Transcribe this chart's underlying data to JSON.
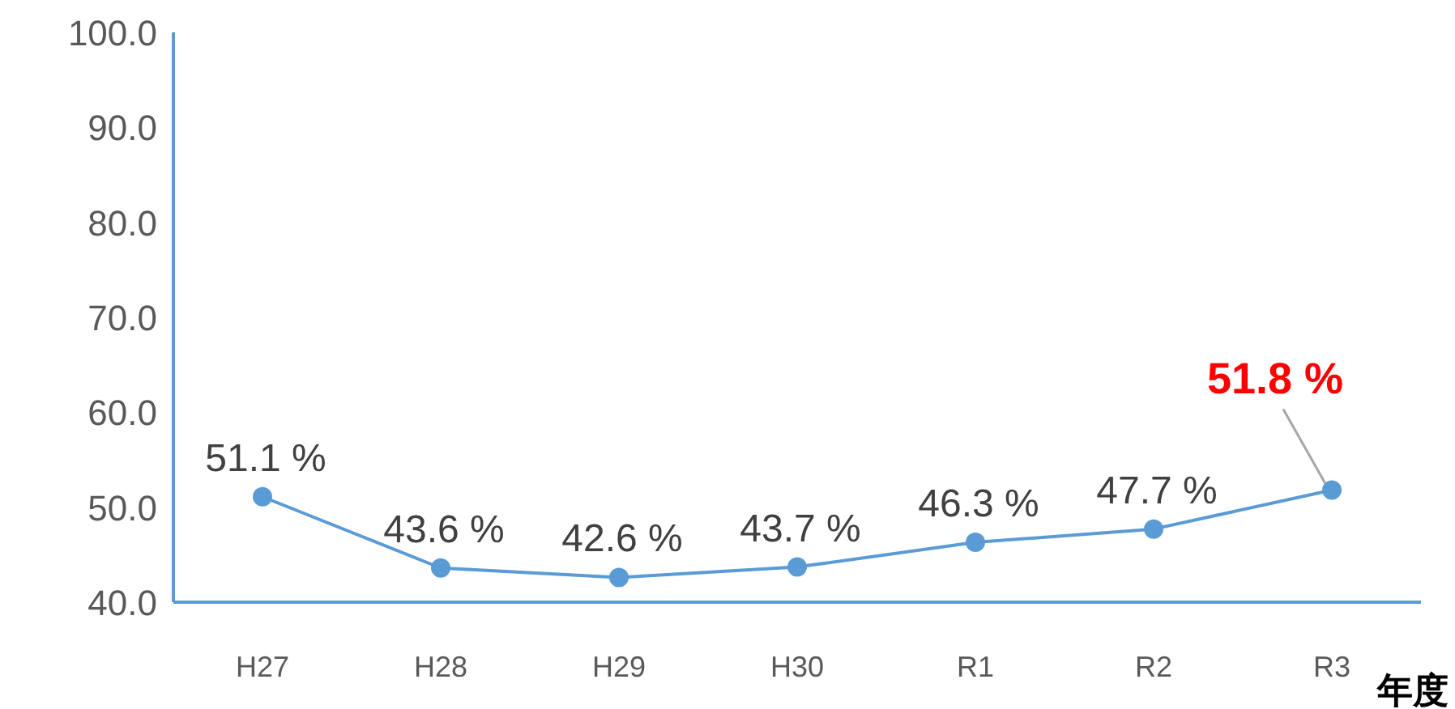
{
  "chart_data": {
    "type": "line",
    "xlabel": "年度",
    "categories": [
      "H27",
      "H28",
      "H29",
      "H30",
      "R1",
      "R2",
      "R3"
    ],
    "series": [
      {
        "color": "#5b9bd5",
        "values": [
          51.1,
          43.6,
          42.6,
          43.7,
          46.3,
          47.7,
          51.8
        ],
        "value_labels": [
          "51.1 %",
          "43.6 %",
          "42.6 %",
          "43.7 %",
          "46.3 %",
          "47.7 %",
          null
        ]
      }
    ],
    "annotations": [
      {
        "text": "51.8 %",
        "x": "R3",
        "y": 51.8
      }
    ],
    "ylim": [
      40,
      100
    ],
    "yticks": [
      {
        "value": 40,
        "label": "40.0"
      },
      {
        "value": 50,
        "label": "50.0"
      },
      {
        "value": 60,
        "label": "60.0"
      },
      {
        "value": 70,
        "label": "70.0"
      },
      {
        "value": 80,
        "label": "80.0"
      },
      {
        "value": 90,
        "label": "90.0"
      },
      {
        "value": 100,
        "label": "100.0"
      }
    ],
    "marker": "circle",
    "line_style": "solid"
  }
}
